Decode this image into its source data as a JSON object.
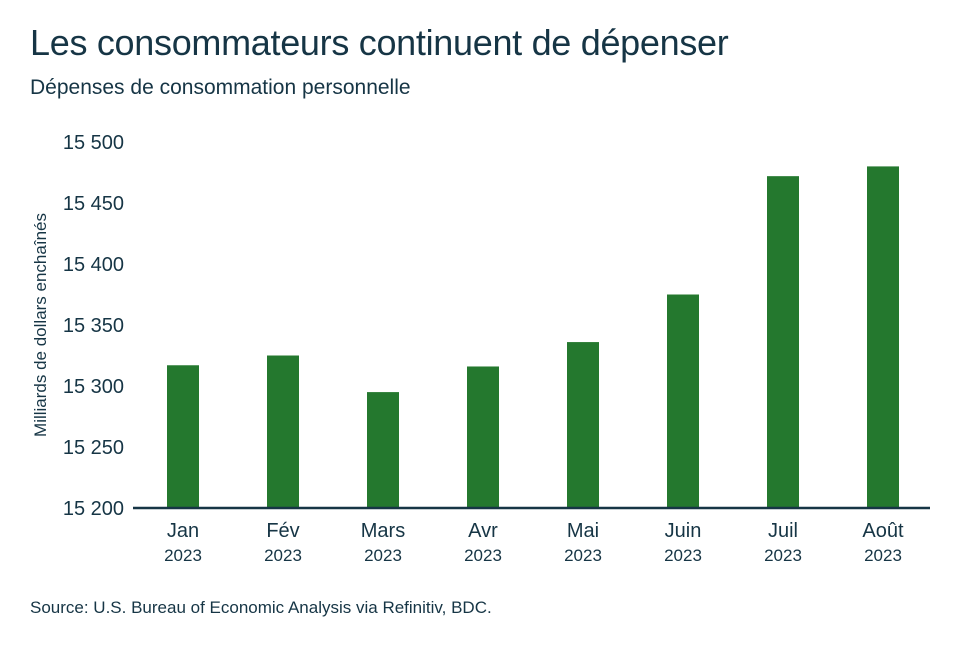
{
  "header": {
    "title": "Les consommateurs continuent de dépenser",
    "subtitle": "Dépenses de consommation personnelle"
  },
  "footer": {
    "source": "Source: U.S. Bureau of Economic Analysis via Refinitiv, BDC."
  },
  "colors": {
    "bar": "#24782e",
    "axis": "#163545",
    "text": "#163545"
  },
  "chart_data": {
    "type": "bar",
    "categories": [
      "Jan",
      "Fév",
      "Mars",
      "Avr",
      "Mai",
      "Juin",
      "Juil",
      "Août"
    ],
    "category_years": [
      "2023",
      "2023",
      "2023",
      "2023",
      "2023",
      "2023",
      "2023",
      "2023"
    ],
    "values": [
      15317,
      15325,
      15295,
      15316,
      15336,
      15375,
      15472,
      15480
    ],
    "title": "Les consommateurs continuent de dépenser",
    "subtitle": "Dépenses de consommation personnelle",
    "xlabel": "",
    "ylabel": "Milliards de dollars enchaînés",
    "ylim": [
      15200,
      15500
    ],
    "yticks": [
      15200,
      15250,
      15300,
      15350,
      15400,
      15450,
      15500
    ],
    "ytick_labels": [
      "15 200",
      "15 250",
      "15 300",
      "15 350",
      "15 400",
      "15 450",
      "15 500"
    ],
    "grid": false,
    "legend": "none"
  }
}
